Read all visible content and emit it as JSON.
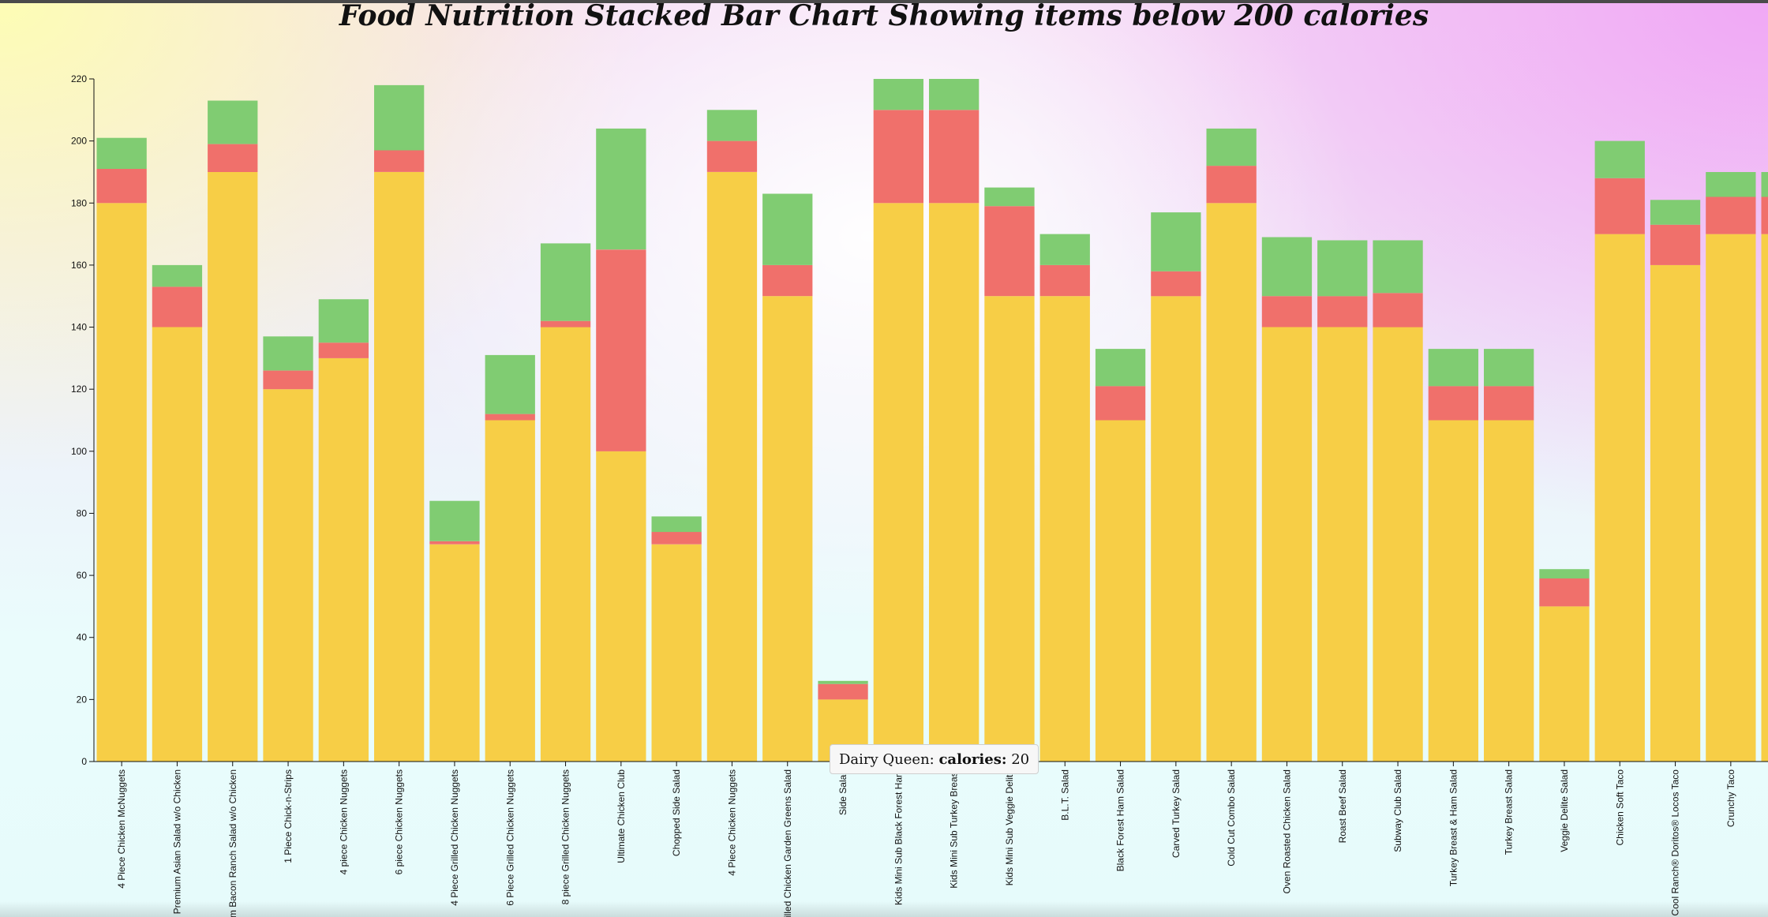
{
  "colors": {
    "calories": "#f7ce46",
    "fat": "#f0706b",
    "protein": "#80cc72",
    "axis": "#111111"
  },
  "tooltip": {
    "restaurant": "Dairy Queen:",
    "key": "calories:",
    "value": "20"
  },
  "chart_data": {
    "type": "bar",
    "stacked": true,
    "title": "Food Nutrition Stacked Bar Chart Showing items below 200 calories",
    "xlabel": "",
    "ylabel": "",
    "ylim": [
      0,
      220
    ],
    "yticks": [
      0,
      20,
      40,
      60,
      80,
      100,
      120,
      140,
      160,
      180,
      200,
      220
    ],
    "grid": false,
    "categories": [
      "4 Piece Chicken McNuggets",
      "Premium Asian Salad w/o Chicken",
      "Premium Bacon Ranch Salad w/o Chicken",
      "1 Piece Chick-n-Strips",
      "4 piece Chicken Nuggets",
      "6 piece Chicken Nuggets",
      "4 Piece Grilled Chicken Nuggets",
      "6 Piece Grilled Chicken Nuggets",
      "8 piece Grilled Chicken Nuggets",
      "Ultimate Chicken Club",
      "Chopped Side Salad",
      "4 Piece Chicken Nuggets",
      "Grilled Chicken Garden Greens Salad",
      "Side Salad",
      "Kids Mini Sub Black Forest Ham",
      "Kids Mini Sub Turkey Breast",
      "Kids Mini Sub Veggie Delite",
      "B.L.T. Salad",
      "Black Forest Ham Salad",
      "Carved Turkey Salad",
      "Cold Cut Combo Salad",
      "Oven Roasted Chicken Salad",
      "Roast Beef Salad",
      "Subway Club Salad",
      "Turkey Breast & Ham Salad",
      "Turkey Breast Salad",
      "Veggie Delite Salad",
      "Chicken Soft Taco",
      "Cool Ranch® Doritos® Locos Taco",
      "Crunchy Taco",
      "Crunchy Taco"
    ],
    "series": [
      {
        "values": [
          180,
          140,
          190,
          120,
          130,
          190,
          70,
          110,
          140,
          100,
          70,
          190,
          150,
          20,
          180,
          180,
          150,
          150,
          110,
          150,
          180,
          140,
          140,
          140,
          110,
          110,
          50,
          170,
          160,
          170,
          170
        ]
      },
      {
        "values": [
          11,
          13,
          9,
          6,
          5,
          7,
          1,
          2,
          2,
          65,
          4,
          10,
          10,
          5,
          30,
          30,
          29,
          10,
          11,
          8,
          12,
          10,
          10,
          11,
          11,
          11,
          9,
          18,
          13,
          12,
          12
        ]
      },
      {
        "values": [
          10,
          7,
          14,
          11,
          14,
          21,
          13,
          19,
          25,
          39,
          5,
          10,
          23,
          1,
          10,
          10,
          6,
          10,
          12,
          19,
          12,
          19,
          18,
          17,
          12,
          12,
          3,
          12,
          8,
          8,
          8
        ]
      }
    ]
  }
}
